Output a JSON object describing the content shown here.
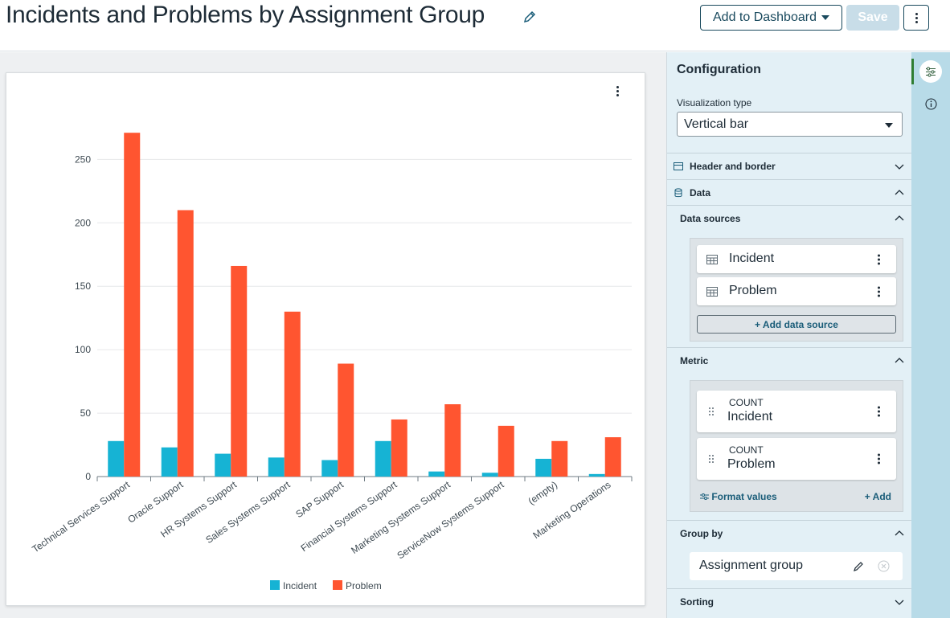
{
  "header": {
    "title": "Incidents and Problems by Assignment Group",
    "add_to_dashboard": "Add to Dashboard",
    "save": "Save"
  },
  "chart_data": {
    "type": "bar",
    "categories": [
      "Technical Services Support",
      "Oracle Support",
      "HR Systems Support",
      "Sales Systems Support",
      "SAP Support",
      "Financial Systems Support",
      "Marketing Systems Support",
      "ServiceNow Systems Support",
      "(empty)",
      "Marketing Operations"
    ],
    "series": [
      {
        "name": "Incident",
        "values": [
          28,
          23,
          18,
          15,
          13,
          28,
          4,
          3,
          14,
          2
        ],
        "color": "#16b3d4"
      },
      {
        "name": "Problem",
        "values": [
          271,
          210,
          166,
          130,
          89,
          45,
          57,
          40,
          28,
          31
        ],
        "color": "#ff5530"
      }
    ],
    "yticks": [
      0,
      50,
      100,
      150,
      200,
      250
    ],
    "ylim": [
      0,
      280
    ],
    "grid": true,
    "legend": "bottom"
  },
  "config": {
    "title": "Configuration",
    "viz_label": "Visualization type",
    "viz_value": "Vertical bar",
    "header_border": "Header and border",
    "data": "Data",
    "data_sources_label": "Data sources",
    "sources": [
      "Incident",
      "Problem"
    ],
    "add_source": "+ Add data source",
    "metric_label": "Metric",
    "metrics": [
      {
        "agg": "COUNT",
        "name": "Incident"
      },
      {
        "agg": "COUNT",
        "name": "Problem"
      }
    ],
    "format_values": "Format values",
    "add": "+ Add",
    "group_by_label": "Group by",
    "group_by_value": "Assignment group",
    "sorting_label": "Sorting"
  },
  "icons": {
    "edit": "pencil-icon",
    "settings": "sliders-icon",
    "info": "info-icon"
  }
}
